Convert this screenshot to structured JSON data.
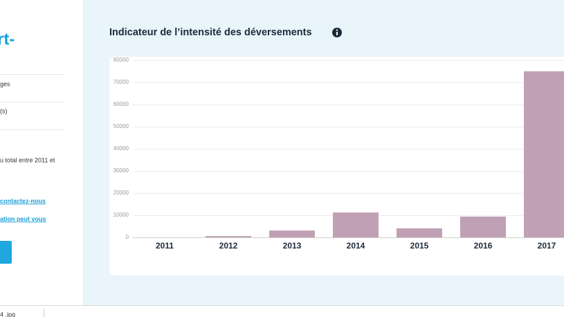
{
  "sidebar": {
    "heading": "rt-",
    "item_1": "ges",
    "item_2": "(s)",
    "text": "u total entre 2011 et",
    "link_1": "contactez-nous",
    "link_2": "ation peut vous"
  },
  "footer": {
    "file": "4 .jpg"
  },
  "chart_data": {
    "type": "bar",
    "title": "Indicateur de l’intensité des déversements",
    "categories": [
      "2011",
      "2012",
      "2013",
      "2014",
      "2015",
      "2016",
      "2017"
    ],
    "values": [
      0,
      600,
      3100,
      11250,
      4100,
      9400,
      75000
    ],
    "color": "#c0a0b4",
    "ylim": [
      0,
      80000
    ],
    "yticks": [
      0,
      10000,
      20000,
      30000,
      40000,
      50000,
      60000,
      70000,
      80000
    ],
    "grid": true
  }
}
